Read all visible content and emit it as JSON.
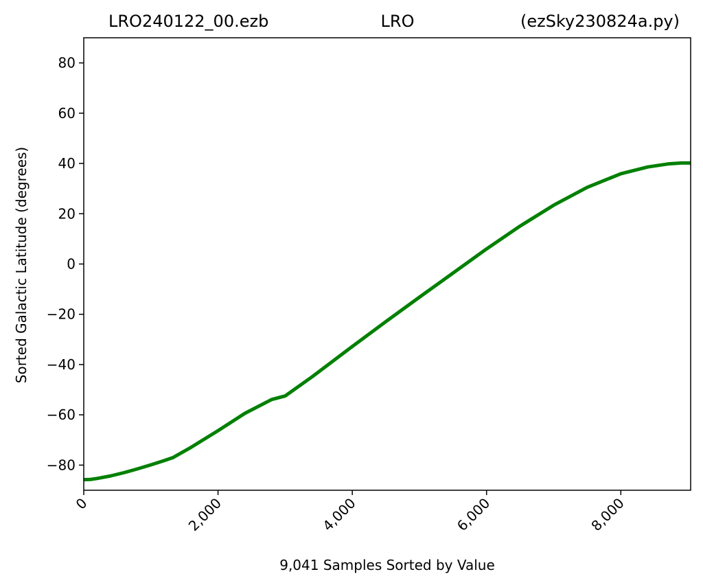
{
  "chart_data": {
    "type": "line",
    "title_parts": {
      "left": "LRO240122_00.ezb",
      "center": "LRO",
      "right": "(ezSky230824a.py)"
    },
    "xlabel": "9,041 Samples Sorted by Value",
    "ylabel": "Sorted Galactic Latitude (degrees)",
    "xlim": [
      0,
      9040
    ],
    "ylim": [
      -90,
      90
    ],
    "x_ticks": [
      0,
      2000,
      4000,
      6000,
      8000
    ],
    "x_tick_labels": [
      "0",
      "2,000",
      "4,000",
      "6,000",
      "8,000"
    ],
    "y_ticks": [
      80,
      60,
      40,
      20,
      0,
      -20,
      -40,
      -60,
      -80
    ],
    "y_tick_labels": [
      "80",
      "60",
      "40",
      "20",
      "0",
      "−20",
      "−40",
      "−60",
      "−80"
    ],
    "grid": false,
    "series": [
      {
        "color": "#008000",
        "x": [
          0,
          100,
          200,
          400,
          600,
          800,
          1000,
          1200,
          1330,
          1600,
          2000,
          2400,
          2800,
          3000,
          3400,
          4000,
          4500,
          5000,
          5500,
          6000,
          6500,
          7000,
          7500,
          8000,
          8400,
          8700,
          8900,
          9040
        ],
        "y": [
          -85.8,
          -85.7,
          -85.3,
          -84.3,
          -83.0,
          -81.5,
          -79.9,
          -78.2,
          -77.0,
          -72.9,
          -66.3,
          -59.4,
          -53.9,
          -52.5,
          -44.9,
          -32.8,
          -22.9,
          -13.2,
          -3.6,
          6.0,
          15.1,
          23.4,
          30.5,
          35.9,
          38.6,
          39.8,
          40.2,
          40.2
        ]
      }
    ]
  }
}
